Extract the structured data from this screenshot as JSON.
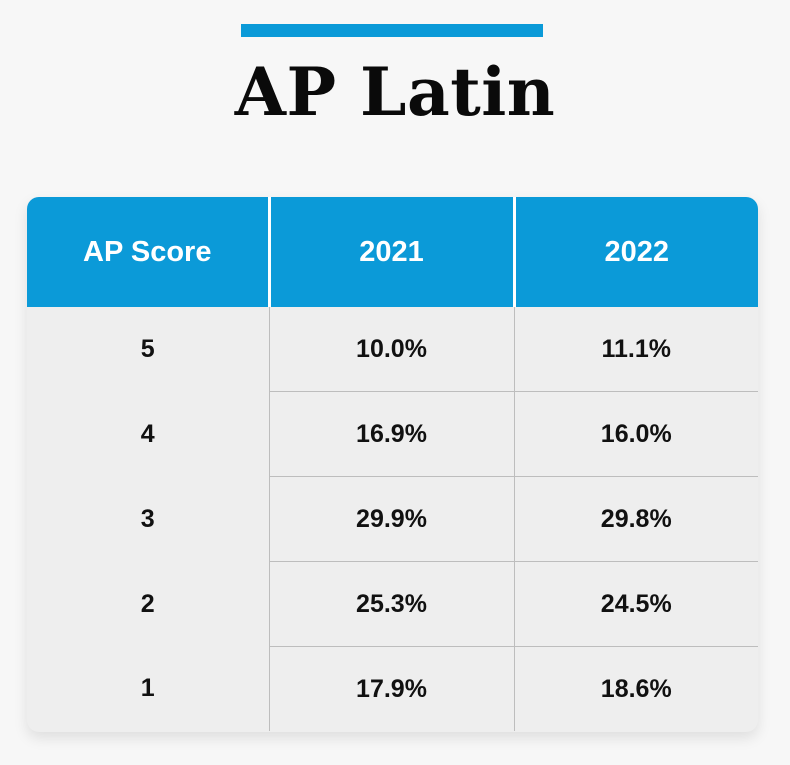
{
  "chart_data": {
    "type": "table",
    "title": "AP Latin",
    "columns": [
      "AP Score",
      "2021",
      "2022"
    ],
    "rows": [
      {
        "score": "5",
        "y2021": "10.0%",
        "y2022": "11.1%"
      },
      {
        "score": "4",
        "y2021": "16.9%",
        "y2022": "16.0%"
      },
      {
        "score": "3",
        "y2021": "29.9%",
        "y2022": "29.8%"
      },
      {
        "score": "2",
        "y2021": "25.3%",
        "y2022": "24.5%"
      },
      {
        "score": "1",
        "y2021": "17.9%",
        "y2022": "18.6%"
      }
    ]
  },
  "colors": {
    "accent": "#0b9ad8",
    "header_text": "#ffffff",
    "body_background": "#eeeeee",
    "page_background": "#f7f7f7"
  }
}
